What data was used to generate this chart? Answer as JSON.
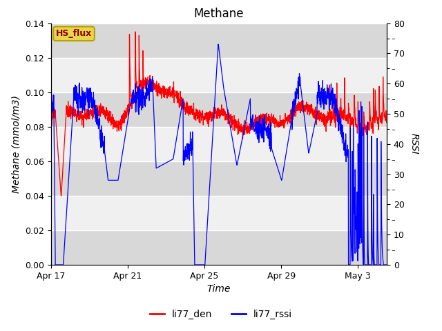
{
  "title": "Methane",
  "xlabel": "Time",
  "ylabel_left": "Methane (mmol/m3)",
  "ylabel_right": "RSSI",
  "ylim_left": [
    0.0,
    0.14
  ],
  "ylim_right": [
    0,
    80
  ],
  "yticks_left": [
    0.0,
    0.02,
    0.04,
    0.06,
    0.08,
    0.1,
    0.12,
    0.14
  ],
  "yticks_right": [
    0,
    10,
    20,
    30,
    40,
    50,
    60,
    70,
    80
  ],
  "xtick_labels": [
    "Apr 17",
    "Apr 21",
    "Apr 25",
    "Apr 29",
    "May 3"
  ],
  "xtick_positions": [
    0,
    4,
    8,
    12,
    16
  ],
  "xlim": [
    0,
    17.5
  ],
  "legend_label_red": "li77_den",
  "legend_label_blue": "li77_rssi",
  "line_color_red": "#ff0000",
  "line_color_blue": "#0000ff",
  "fig_bg_color": "#ffffff",
  "plot_bg_light": "#f0f0f0",
  "plot_bg_dark": "#d8d8d8",
  "hs_flux_box_color": "#e8d44d",
  "hs_flux_text": "HS_flux",
  "hs_flux_text_color": "#8B0000",
  "hs_flux_edge_color": "#b8a000",
  "title_fontsize": 12,
  "axis_label_fontsize": 10,
  "tick_fontsize": 9,
  "legend_fontsize": 10
}
